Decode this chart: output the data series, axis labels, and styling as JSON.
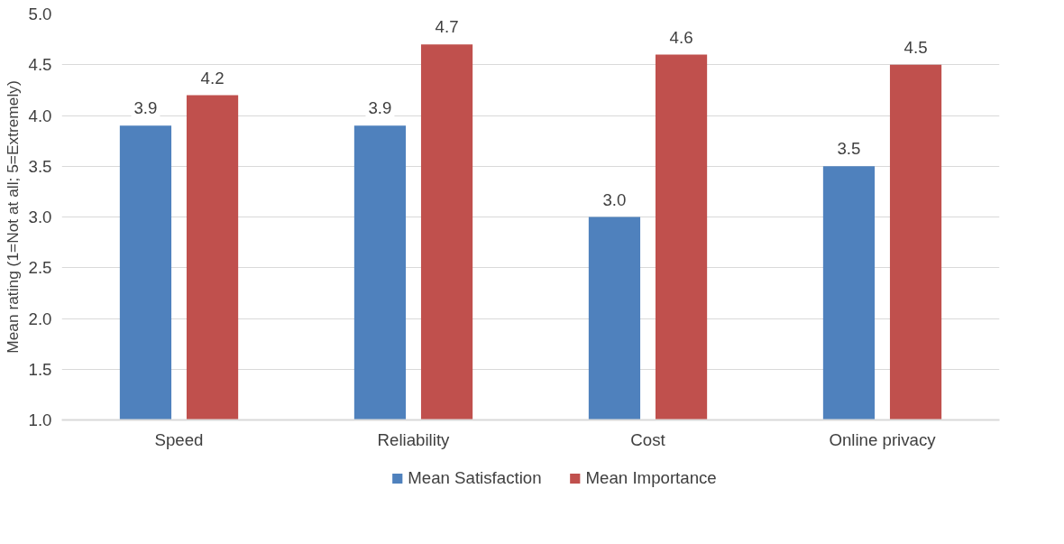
{
  "chart_data": {
    "type": "bar",
    "ylabel": "Mean rating (1=Not at all; 5=Extremely)",
    "categories": [
      "Speed",
      "Reliability",
      "Cost",
      "Online privacy"
    ],
    "series": [
      {
        "name": "Mean Satisfaction",
        "color": "#4f81bd",
        "values": [
          3.9,
          3.9,
          3.0,
          3.5
        ],
        "value_labels": [
          "3.9",
          "3.9",
          "3.0",
          "3.5"
        ]
      },
      {
        "name": "Mean Importance",
        "color": "#c0504d",
        "values": [
          4.2,
          4.7,
          4.6,
          4.5
        ],
        "value_labels": [
          "4.2",
          "4.7",
          "4.6",
          "4.5"
        ]
      }
    ],
    "ylim": [
      1.0,
      5.0
    ],
    "yticks": [
      {
        "value": 1.0,
        "label": "1.0"
      },
      {
        "value": 1.5,
        "label": "1.5"
      },
      {
        "value": 2.0,
        "label": "2.0"
      },
      {
        "value": 2.5,
        "label": "2.5"
      },
      {
        "value": 3.0,
        "label": "3.0"
      },
      {
        "value": 3.5,
        "label": "3.5"
      },
      {
        "value": 4.0,
        "label": "4.0"
      },
      {
        "value": 4.5,
        "label": "4.5"
      },
      {
        "value": 5.0,
        "label": "5.0"
      }
    ],
    "grid": "y",
    "legend": "bottom"
  }
}
